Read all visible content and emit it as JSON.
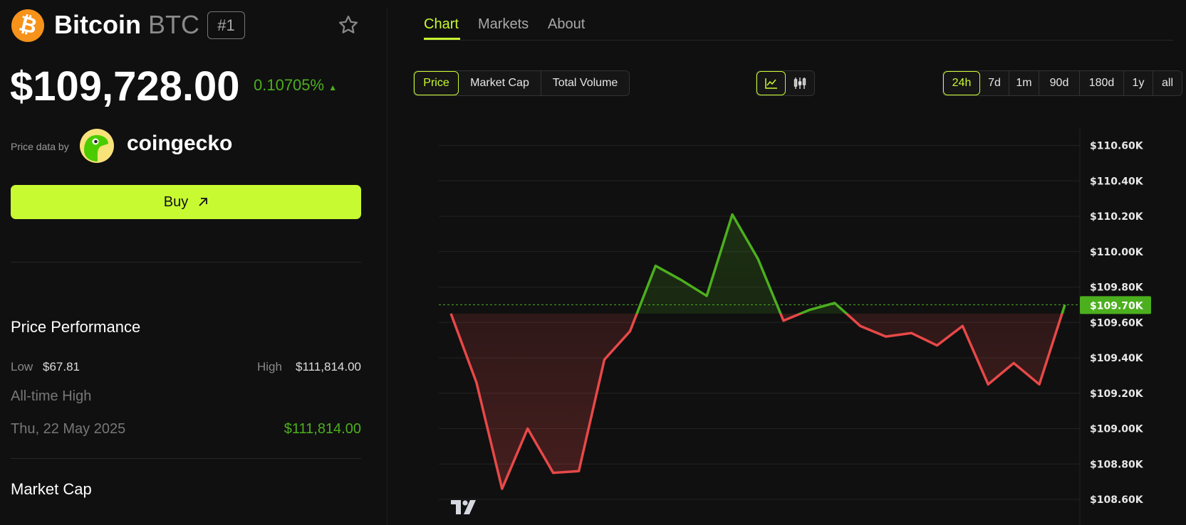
{
  "coin": {
    "name": "Bitcoin",
    "symbol": "BTC",
    "rank": "#1",
    "price": "$109,728.00",
    "change": "0.10705%",
    "change_icon": "triangle-up-icon",
    "watch_icon": "star-icon"
  },
  "source": {
    "label": "Price data by",
    "brand": "coingecko"
  },
  "buy": {
    "label": "Buy",
    "icon": "arrow-up-right-icon"
  },
  "performance": {
    "title": "Price Performance",
    "low_label": "Low",
    "low": "$67.81",
    "high_label": "High",
    "high": "$111,814.00",
    "ath_label": "All-time High",
    "ath_date": "Thu, 22 May 2025",
    "ath_value": "$111,814.00"
  },
  "market_cap": {
    "title": "Market Cap"
  },
  "tabs": [
    {
      "label": "Chart",
      "active": true
    },
    {
      "label": "Markets"
    },
    {
      "label": "About"
    }
  ],
  "metric_buttons": [
    {
      "label": "Price",
      "active": true
    },
    {
      "label": "Market Cap"
    },
    {
      "label": "Total Volume"
    }
  ],
  "chart_types": [
    {
      "icon": "line-chart-icon",
      "active": true
    },
    {
      "icon": "candlestick-icon"
    }
  ],
  "ranges": [
    {
      "label": "24h",
      "active": true
    },
    {
      "label": "7d"
    },
    {
      "label": "1m"
    },
    {
      "label": "90d"
    },
    {
      "label": "180d"
    },
    {
      "label": "1y"
    },
    {
      "label": "all"
    }
  ],
  "colors": {
    "accent": "#c8fa32",
    "up": "#4caf1e",
    "down": "#e84848",
    "background": "#101010"
  },
  "chart_data": {
    "type": "area",
    "baseline": 109.65,
    "unit": "K USD",
    "values": [
      109.65,
      109.26,
      108.66,
      109.0,
      108.75,
      108.76,
      109.39,
      109.55,
      109.92,
      109.84,
      109.75,
      110.21,
      109.96,
      109.61,
      109.67,
      109.71,
      109.58,
      109.52,
      109.54,
      109.47,
      109.58,
      109.25,
      109.37,
      109.25,
      109.7
    ],
    "ylim": [
      108.6,
      110.6
    ],
    "y_ticks": [
      "$110.60K",
      "$110.40K",
      "$110.20K",
      "$110.00K",
      "$109.80K",
      "$109.60K",
      "$109.40K",
      "$109.20K",
      "$109.00K",
      "$108.80K",
      "$108.60K"
    ],
    "last_price_label": "$109.70K",
    "last_price": 109.7,
    "grid": true
  }
}
